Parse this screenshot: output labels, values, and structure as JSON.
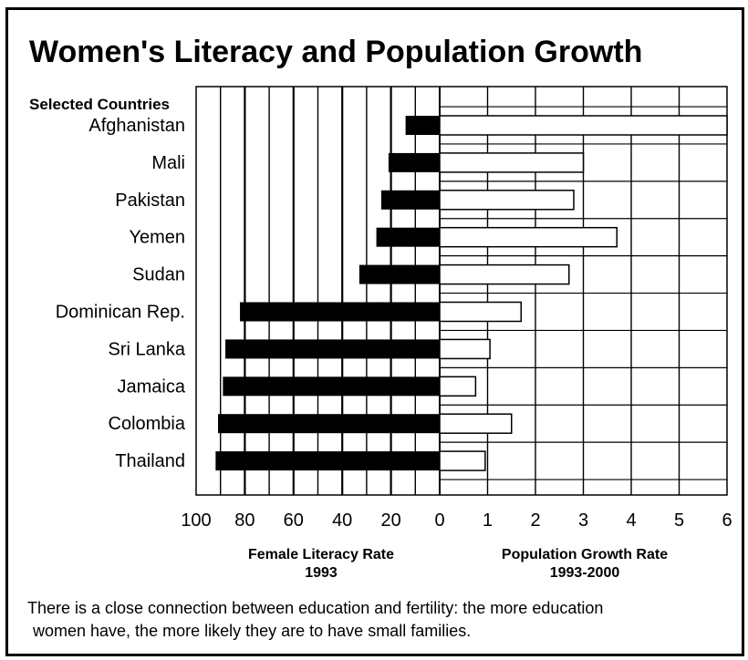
{
  "chart_data": {
    "type": "bar",
    "title": "Women's Literacy and Population Growth",
    "category_header": "Selected Countries",
    "categories": [
      "Afghanistan",
      "Mali",
      "Pakistan",
      "Yemen",
      "Sudan",
      "Dominican Rep.",
      "Sri Lanka",
      "Jamaica",
      "Colombia",
      "Thailand"
    ],
    "series": [
      {
        "name": "Female Literacy Rate 1993",
        "axis_title_line1": "Female Literacy Rate",
        "axis_title_line2": "1993",
        "color": "#000000",
        "values": [
          14,
          21,
          24,
          26,
          33,
          82,
          88,
          89,
          91,
          92
        ],
        "xlim": [
          100,
          0
        ],
        "ticks": [
          "100",
          "80",
          "60",
          "40",
          "20",
          "0"
        ]
      },
      {
        "name": "Population Growth Rate 1993-2000",
        "axis_title_line1": "Population Growth Rate",
        "axis_title_line2": "1993-2000",
        "color": "#ffffff",
        "values": [
          6.0,
          3.0,
          2.8,
          3.7,
          2.7,
          1.7,
          1.05,
          0.75,
          1.5,
          0.95
        ],
        "xlim": [
          0,
          6
        ],
        "ticks": [
          "1",
          "2",
          "3",
          "4",
          "5",
          "6"
        ]
      }
    ],
    "grid": true,
    "legend": "none"
  },
  "caption_line1": "There is a close connection between education and fertility: the more education",
  "caption_line2": "women have, the more likely they are to have small families."
}
